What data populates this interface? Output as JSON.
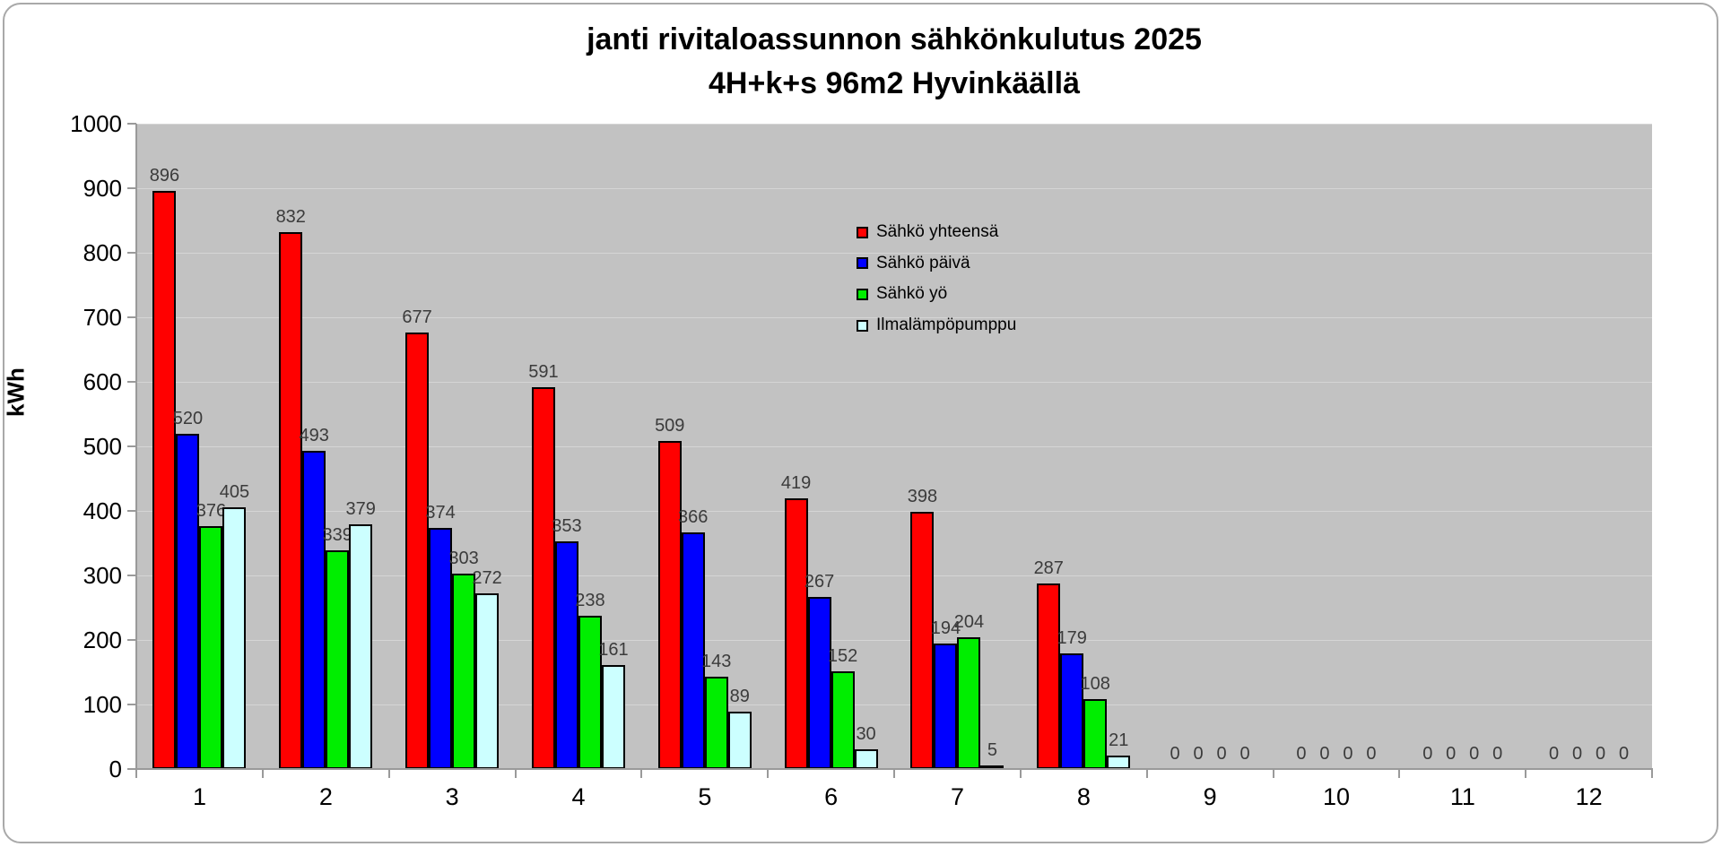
{
  "title": {
    "line1": "janti rivitaloassunnon sähkönkulutus 2025",
    "line2": "4H+k+s 96m2 Hyvinkäällä"
  },
  "y_axis": {
    "label": "kWh",
    "ticks": [
      0,
      100,
      200,
      300,
      400,
      500,
      600,
      700,
      800,
      900,
      1000
    ],
    "min": 0,
    "max": 1000
  },
  "x_axis": {
    "categories": [
      "1",
      "2",
      "3",
      "4",
      "5",
      "6",
      "7",
      "8",
      "9",
      "10",
      "11",
      "12"
    ]
  },
  "legend": {
    "items": [
      {
        "label": "Sähkö yhteensä",
        "color": "#ff0000"
      },
      {
        "label": "Sähkö päivä",
        "color": "#0000ff"
      },
      {
        "label": "Sähkö yö",
        "color": "#00ee00"
      },
      {
        "label": "Ilmalämpöpumppu",
        "color": "#ccffff"
      }
    ]
  },
  "colors": {
    "plot_background": "#c2c2c2",
    "gridline": "#d5d5d5",
    "axis": "#9a9a9a",
    "bar_border": "#000000",
    "frame_border": "#a9a9a9"
  },
  "chart_data": {
    "type": "bar",
    "title": "janti rivitaloassunnon sähkönkulutus 2025 4H+k+s 96m2 Hyvinkäällä",
    "xlabel": "",
    "ylabel": "kWh",
    "ylim": [
      0,
      1000
    ],
    "grid": true,
    "legend_position": "upper-center-right",
    "categories": [
      "1",
      "2",
      "3",
      "4",
      "5",
      "6",
      "7",
      "8",
      "9",
      "10",
      "11",
      "12"
    ],
    "series": [
      {
        "name": "Sähkö yhteensä",
        "slug": "sahko-yhteensa",
        "color": "#ff0000",
        "values": [
          896,
          832,
          677,
          591,
          509,
          419,
          398,
          287,
          0,
          0,
          0,
          0
        ]
      },
      {
        "name": "Sähkö päivä",
        "slug": "sahko-paiva",
        "color": "#0000ff",
        "values": [
          520,
          493,
          374,
          353,
          366,
          267,
          194,
          179,
          0,
          0,
          0,
          0
        ]
      },
      {
        "name": "Sähkö yö",
        "slug": "sahko-yo",
        "color": "#00ee00",
        "values": [
          376,
          339,
          303,
          238,
          143,
          152,
          204,
          108,
          0,
          0,
          0,
          0
        ]
      },
      {
        "name": "Ilmalämpöpumppu",
        "slug": "ilmalampopumppu",
        "color": "#ccffff",
        "values": [
          405,
          379,
          272,
          161,
          89,
          30,
          5,
          21,
          0,
          0,
          0,
          0
        ]
      }
    ]
  }
}
